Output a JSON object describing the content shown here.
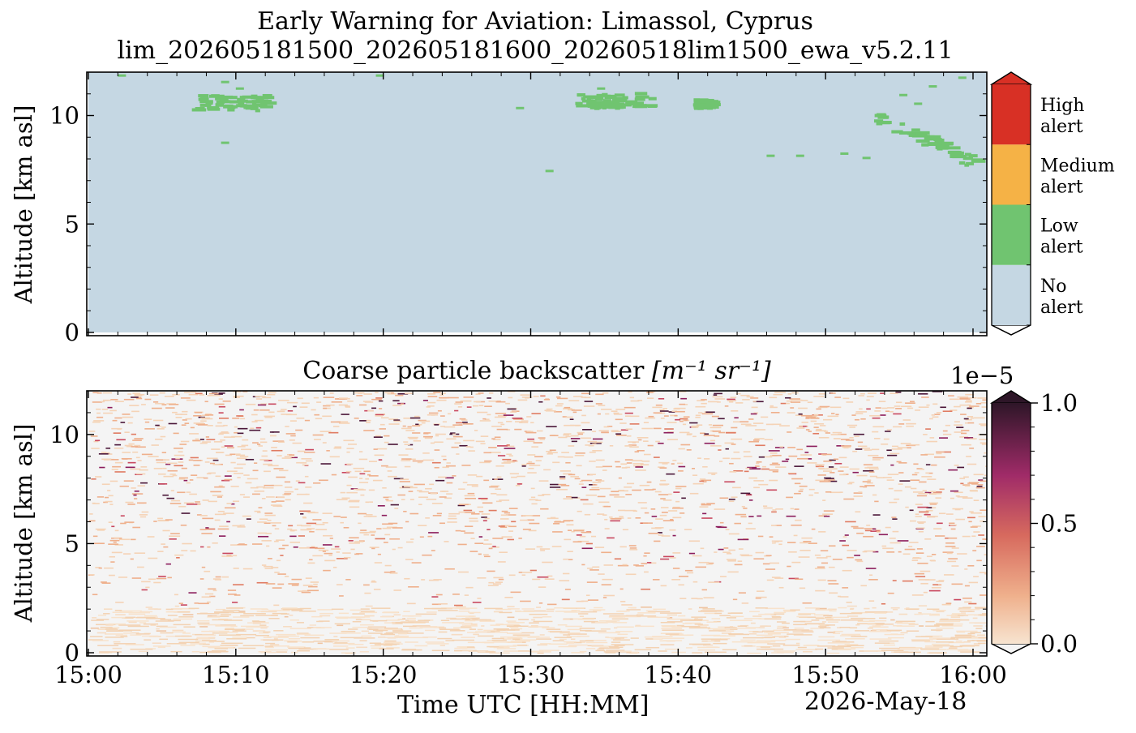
{
  "header": {
    "title": "Early Warning for Aviation: Limassol, Cyprus",
    "filename": "lim_202605181500_202605181600_20260518lim1500_ewa_v5.2.11"
  },
  "chart_data": [
    {
      "type": "heatmap",
      "name": "alert-level-map",
      "ylabel": "Altitude [km asl]",
      "ylim": [
        0,
        12
      ],
      "yticks": [
        0,
        5,
        10
      ],
      "xticks": [
        "15:00",
        "15:10",
        "15:20",
        "15:30",
        "15:40",
        "15:50",
        "16:00"
      ],
      "xlim_minutes": [
        0,
        61
      ],
      "colorbar": {
        "categories": [
          "No\nalert",
          "Low\nalert",
          "Medium\nalert",
          "High\nalert"
        ],
        "labels": [
          [
            "No",
            "alert"
          ],
          [
            "Low",
            "alert"
          ],
          [
            "Medium",
            "alert"
          ],
          [
            "High",
            "alert"
          ]
        ],
        "colors": [
          "#c5d7e3",
          "#70c470",
          "#f5b246",
          "#d83025"
        ]
      },
      "low_alert_regions": [
        {
          "t0": 7,
          "t1": 12,
          "z0": 10.3,
          "z1": 11.0
        },
        {
          "t0": 33,
          "t1": 38,
          "z0": 10.4,
          "z1": 11.1
        },
        {
          "t0": 41,
          "t1": 42,
          "z0": 10.4,
          "z1": 10.8
        },
        {
          "t0": 53,
          "t1": 60,
          "z0": 7.9,
          "z1": 10.0
        }
      ]
    },
    {
      "type": "heatmap",
      "name": "coarse-backscatter",
      "title": "Coarse particle backscatter",
      "title_unit": "[m⁻¹ sr⁻¹]",
      "ylabel": "Altitude [km asl]",
      "xlabel": "Time UTC [HH:MM]",
      "date": "2026-May-18",
      "ylim": [
        0,
        12
      ],
      "yticks": [
        0,
        5,
        10
      ],
      "xticks": [
        "15:00",
        "15:10",
        "15:20",
        "15:30",
        "15:40",
        "15:50",
        "16:00"
      ],
      "colorbar": {
        "exponent": "1e−5",
        "ticks": [
          "0.0",
          "0.5",
          "1.0"
        ],
        "range": [
          0,
          1.0
        ]
      }
    }
  ]
}
